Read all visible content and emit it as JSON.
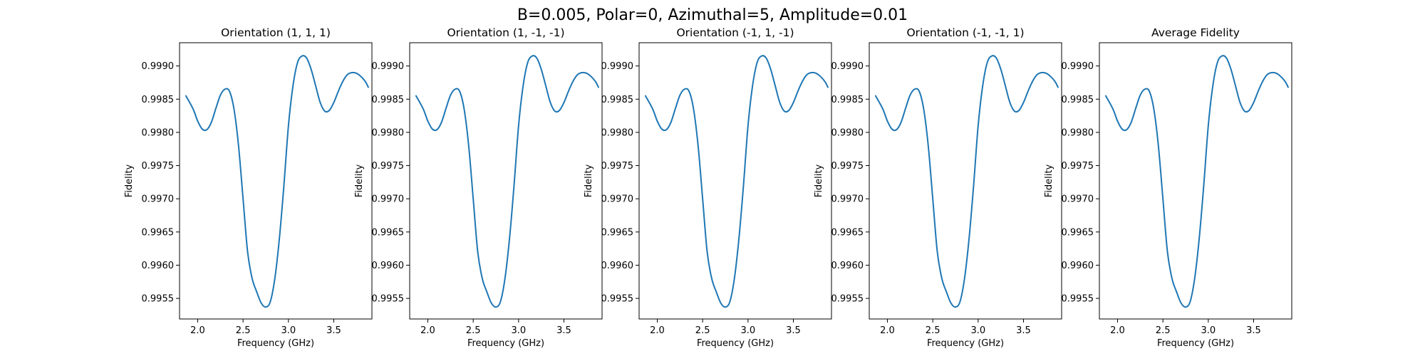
{
  "figure": {
    "suptitle": "B=0.005, Polar=0, Azimuthal=5, Amplitude=0.01"
  },
  "chart_data": [
    {
      "type": "line",
      "title": "Orientation (1, 1, 1)",
      "xlabel": "Frequency (GHz)",
      "ylabel": "Fidelity",
      "xlim": [
        1.8,
        3.92
      ],
      "ylim": [
        0.99519,
        0.99935
      ],
      "xticks": [
        "2.0",
        "2.5",
        "3.0",
        "3.5"
      ],
      "yticks": [
        "0.9955",
        "0.9960",
        "0.9965",
        "0.9970",
        "0.9975",
        "0.9980",
        "0.9985",
        "0.9990"
      ],
      "grid": false,
      "color": "#1f77b4",
      "x": [
        1.87,
        1.95,
        2.0,
        2.05,
        2.1,
        2.15,
        2.2,
        2.25,
        2.3,
        2.35,
        2.4,
        2.45,
        2.5,
        2.55,
        2.6,
        2.65,
        2.7,
        2.75,
        2.8,
        2.85,
        2.9,
        2.95,
        3.0,
        3.05,
        3.1,
        3.15,
        3.2,
        3.25,
        3.3,
        3.35,
        3.4,
        3.45,
        3.5,
        3.55,
        3.6,
        3.65,
        3.7,
        3.75,
        3.8,
        3.85,
        3.88
      ],
      "y": [
        0.99855,
        0.99835,
        0.99817,
        0.99805,
        0.99804,
        0.99815,
        0.99836,
        0.99856,
        0.99865,
        0.99862,
        0.99835,
        0.9978,
        0.997,
        0.9962,
        0.9958,
        0.9956,
        0.99543,
        0.99537,
        0.99545,
        0.9958,
        0.9964,
        0.9972,
        0.9981,
        0.9987,
        0.99905,
        0.99915,
        0.99912,
        0.99895,
        0.9987,
        0.99845,
        0.99832,
        0.99833,
        0.99845,
        0.99862,
        0.99877,
        0.99887,
        0.9989,
        0.99889,
        0.99884,
        0.99876,
        0.99868
      ]
    },
    {
      "type": "line",
      "title": "Orientation (1, -1, -1)",
      "xlabel": "Frequency (GHz)",
      "ylabel": "Fidelity",
      "xlim": [
        1.8,
        3.92
      ],
      "ylim": [
        0.99519,
        0.99935
      ],
      "xticks": [
        "2.0",
        "2.5",
        "3.0",
        "3.5"
      ],
      "yticks": [
        "0.9955",
        "0.9960",
        "0.9965",
        "0.9970",
        "0.9975",
        "0.9980",
        "0.9985",
        "0.9990"
      ],
      "grid": false,
      "color": "#1f77b4",
      "x": [
        1.87,
        1.95,
        2.0,
        2.05,
        2.1,
        2.15,
        2.2,
        2.25,
        2.3,
        2.35,
        2.4,
        2.45,
        2.5,
        2.55,
        2.6,
        2.65,
        2.7,
        2.75,
        2.8,
        2.85,
        2.9,
        2.95,
        3.0,
        3.05,
        3.1,
        3.15,
        3.2,
        3.25,
        3.3,
        3.35,
        3.4,
        3.45,
        3.5,
        3.55,
        3.6,
        3.65,
        3.7,
        3.75,
        3.8,
        3.85,
        3.88
      ],
      "y": [
        0.99855,
        0.99835,
        0.99817,
        0.99805,
        0.99804,
        0.99815,
        0.99836,
        0.99856,
        0.99865,
        0.99862,
        0.99835,
        0.9978,
        0.997,
        0.9962,
        0.9958,
        0.9956,
        0.99543,
        0.99537,
        0.99545,
        0.9958,
        0.9964,
        0.9972,
        0.9981,
        0.9987,
        0.99905,
        0.99915,
        0.99912,
        0.99895,
        0.9987,
        0.99845,
        0.99832,
        0.99833,
        0.99845,
        0.99862,
        0.99877,
        0.99887,
        0.9989,
        0.99889,
        0.99884,
        0.99876,
        0.99868
      ]
    },
    {
      "type": "line",
      "title": "Orientation (-1, 1, -1)",
      "xlabel": "Frequency (GHz)",
      "ylabel": "Fidelity",
      "xlim": [
        1.8,
        3.92
      ],
      "ylim": [
        0.99519,
        0.99935
      ],
      "xticks": [
        "2.0",
        "2.5",
        "3.0",
        "3.5"
      ],
      "yticks": [
        "0.9955",
        "0.9960",
        "0.9965",
        "0.9970",
        "0.9975",
        "0.9980",
        "0.9985",
        "0.9990"
      ],
      "grid": false,
      "color": "#1f77b4",
      "x": [
        1.87,
        1.95,
        2.0,
        2.05,
        2.1,
        2.15,
        2.2,
        2.25,
        2.3,
        2.35,
        2.4,
        2.45,
        2.5,
        2.55,
        2.6,
        2.65,
        2.7,
        2.75,
        2.8,
        2.85,
        2.9,
        2.95,
        3.0,
        3.05,
        3.1,
        3.15,
        3.2,
        3.25,
        3.3,
        3.35,
        3.4,
        3.45,
        3.5,
        3.55,
        3.6,
        3.65,
        3.7,
        3.75,
        3.8,
        3.85,
        3.88
      ],
      "y": [
        0.99855,
        0.99835,
        0.99817,
        0.99805,
        0.99804,
        0.99815,
        0.99836,
        0.99856,
        0.99865,
        0.99862,
        0.99835,
        0.9978,
        0.997,
        0.9962,
        0.9958,
        0.9956,
        0.99543,
        0.99537,
        0.99545,
        0.9958,
        0.9964,
        0.9972,
        0.9981,
        0.9987,
        0.99905,
        0.99915,
        0.99912,
        0.99895,
        0.9987,
        0.99845,
        0.99832,
        0.99833,
        0.99845,
        0.99862,
        0.99877,
        0.99887,
        0.9989,
        0.99889,
        0.99884,
        0.99876,
        0.99868
      ]
    },
    {
      "type": "line",
      "title": "Orientation (-1, -1, 1)",
      "xlabel": "Frequency (GHz)",
      "ylabel": "Fidelity",
      "xlim": [
        1.8,
        3.92
      ],
      "ylim": [
        0.99519,
        0.99935
      ],
      "xticks": [
        "2.0",
        "2.5",
        "3.0",
        "3.5"
      ],
      "yticks": [
        "0.9955",
        "0.9960",
        "0.9965",
        "0.9970",
        "0.9975",
        "0.9980",
        "0.9985",
        "0.9990"
      ],
      "grid": false,
      "color": "#1f77b4",
      "x": [
        1.87,
        1.95,
        2.0,
        2.05,
        2.1,
        2.15,
        2.2,
        2.25,
        2.3,
        2.35,
        2.4,
        2.45,
        2.5,
        2.55,
        2.6,
        2.65,
        2.7,
        2.75,
        2.8,
        2.85,
        2.9,
        2.95,
        3.0,
        3.05,
        3.1,
        3.15,
        3.2,
        3.25,
        3.3,
        3.35,
        3.4,
        3.45,
        3.5,
        3.55,
        3.6,
        3.65,
        3.7,
        3.75,
        3.8,
        3.85,
        3.88
      ],
      "y": [
        0.99855,
        0.99835,
        0.99817,
        0.99805,
        0.99804,
        0.99815,
        0.99836,
        0.99856,
        0.99865,
        0.99862,
        0.99835,
        0.9978,
        0.997,
        0.9962,
        0.9958,
        0.9956,
        0.99543,
        0.99537,
        0.99545,
        0.9958,
        0.9964,
        0.9972,
        0.9981,
        0.9987,
        0.99905,
        0.99915,
        0.99912,
        0.99895,
        0.9987,
        0.99845,
        0.99832,
        0.99833,
        0.99845,
        0.99862,
        0.99877,
        0.99887,
        0.9989,
        0.99889,
        0.99884,
        0.99876,
        0.99868
      ]
    },
    {
      "type": "line",
      "title": "Average Fidelity",
      "xlabel": "Frequency (GHz)",
      "ylabel": "Fidelity",
      "xlim": [
        1.8,
        3.92
      ],
      "ylim": [
        0.99519,
        0.99935
      ],
      "xticks": [
        "2.0",
        "2.5",
        "3.0",
        "3.5"
      ],
      "yticks": [
        "0.9955",
        "0.9960",
        "0.9965",
        "0.9970",
        "0.9975",
        "0.9980",
        "0.9985",
        "0.9990"
      ],
      "grid": false,
      "color": "#1f77b4",
      "x": [
        1.87,
        1.95,
        2.0,
        2.05,
        2.1,
        2.15,
        2.2,
        2.25,
        2.3,
        2.35,
        2.4,
        2.45,
        2.5,
        2.55,
        2.6,
        2.65,
        2.7,
        2.75,
        2.8,
        2.85,
        2.9,
        2.95,
        3.0,
        3.05,
        3.1,
        3.15,
        3.2,
        3.25,
        3.3,
        3.35,
        3.4,
        3.45,
        3.5,
        3.55,
        3.6,
        3.65,
        3.7,
        3.75,
        3.8,
        3.85,
        3.88
      ],
      "y": [
        0.99855,
        0.99835,
        0.99817,
        0.99805,
        0.99804,
        0.99815,
        0.99836,
        0.99856,
        0.99865,
        0.99862,
        0.99835,
        0.9978,
        0.997,
        0.9962,
        0.9958,
        0.9956,
        0.99543,
        0.99537,
        0.99545,
        0.9958,
        0.9964,
        0.9972,
        0.9981,
        0.9987,
        0.99905,
        0.99915,
        0.99912,
        0.99895,
        0.9987,
        0.99845,
        0.99832,
        0.99833,
        0.99845,
        0.99862,
        0.99877,
        0.99887,
        0.9989,
        0.99889,
        0.99884,
        0.99876,
        0.99868
      ]
    }
  ]
}
